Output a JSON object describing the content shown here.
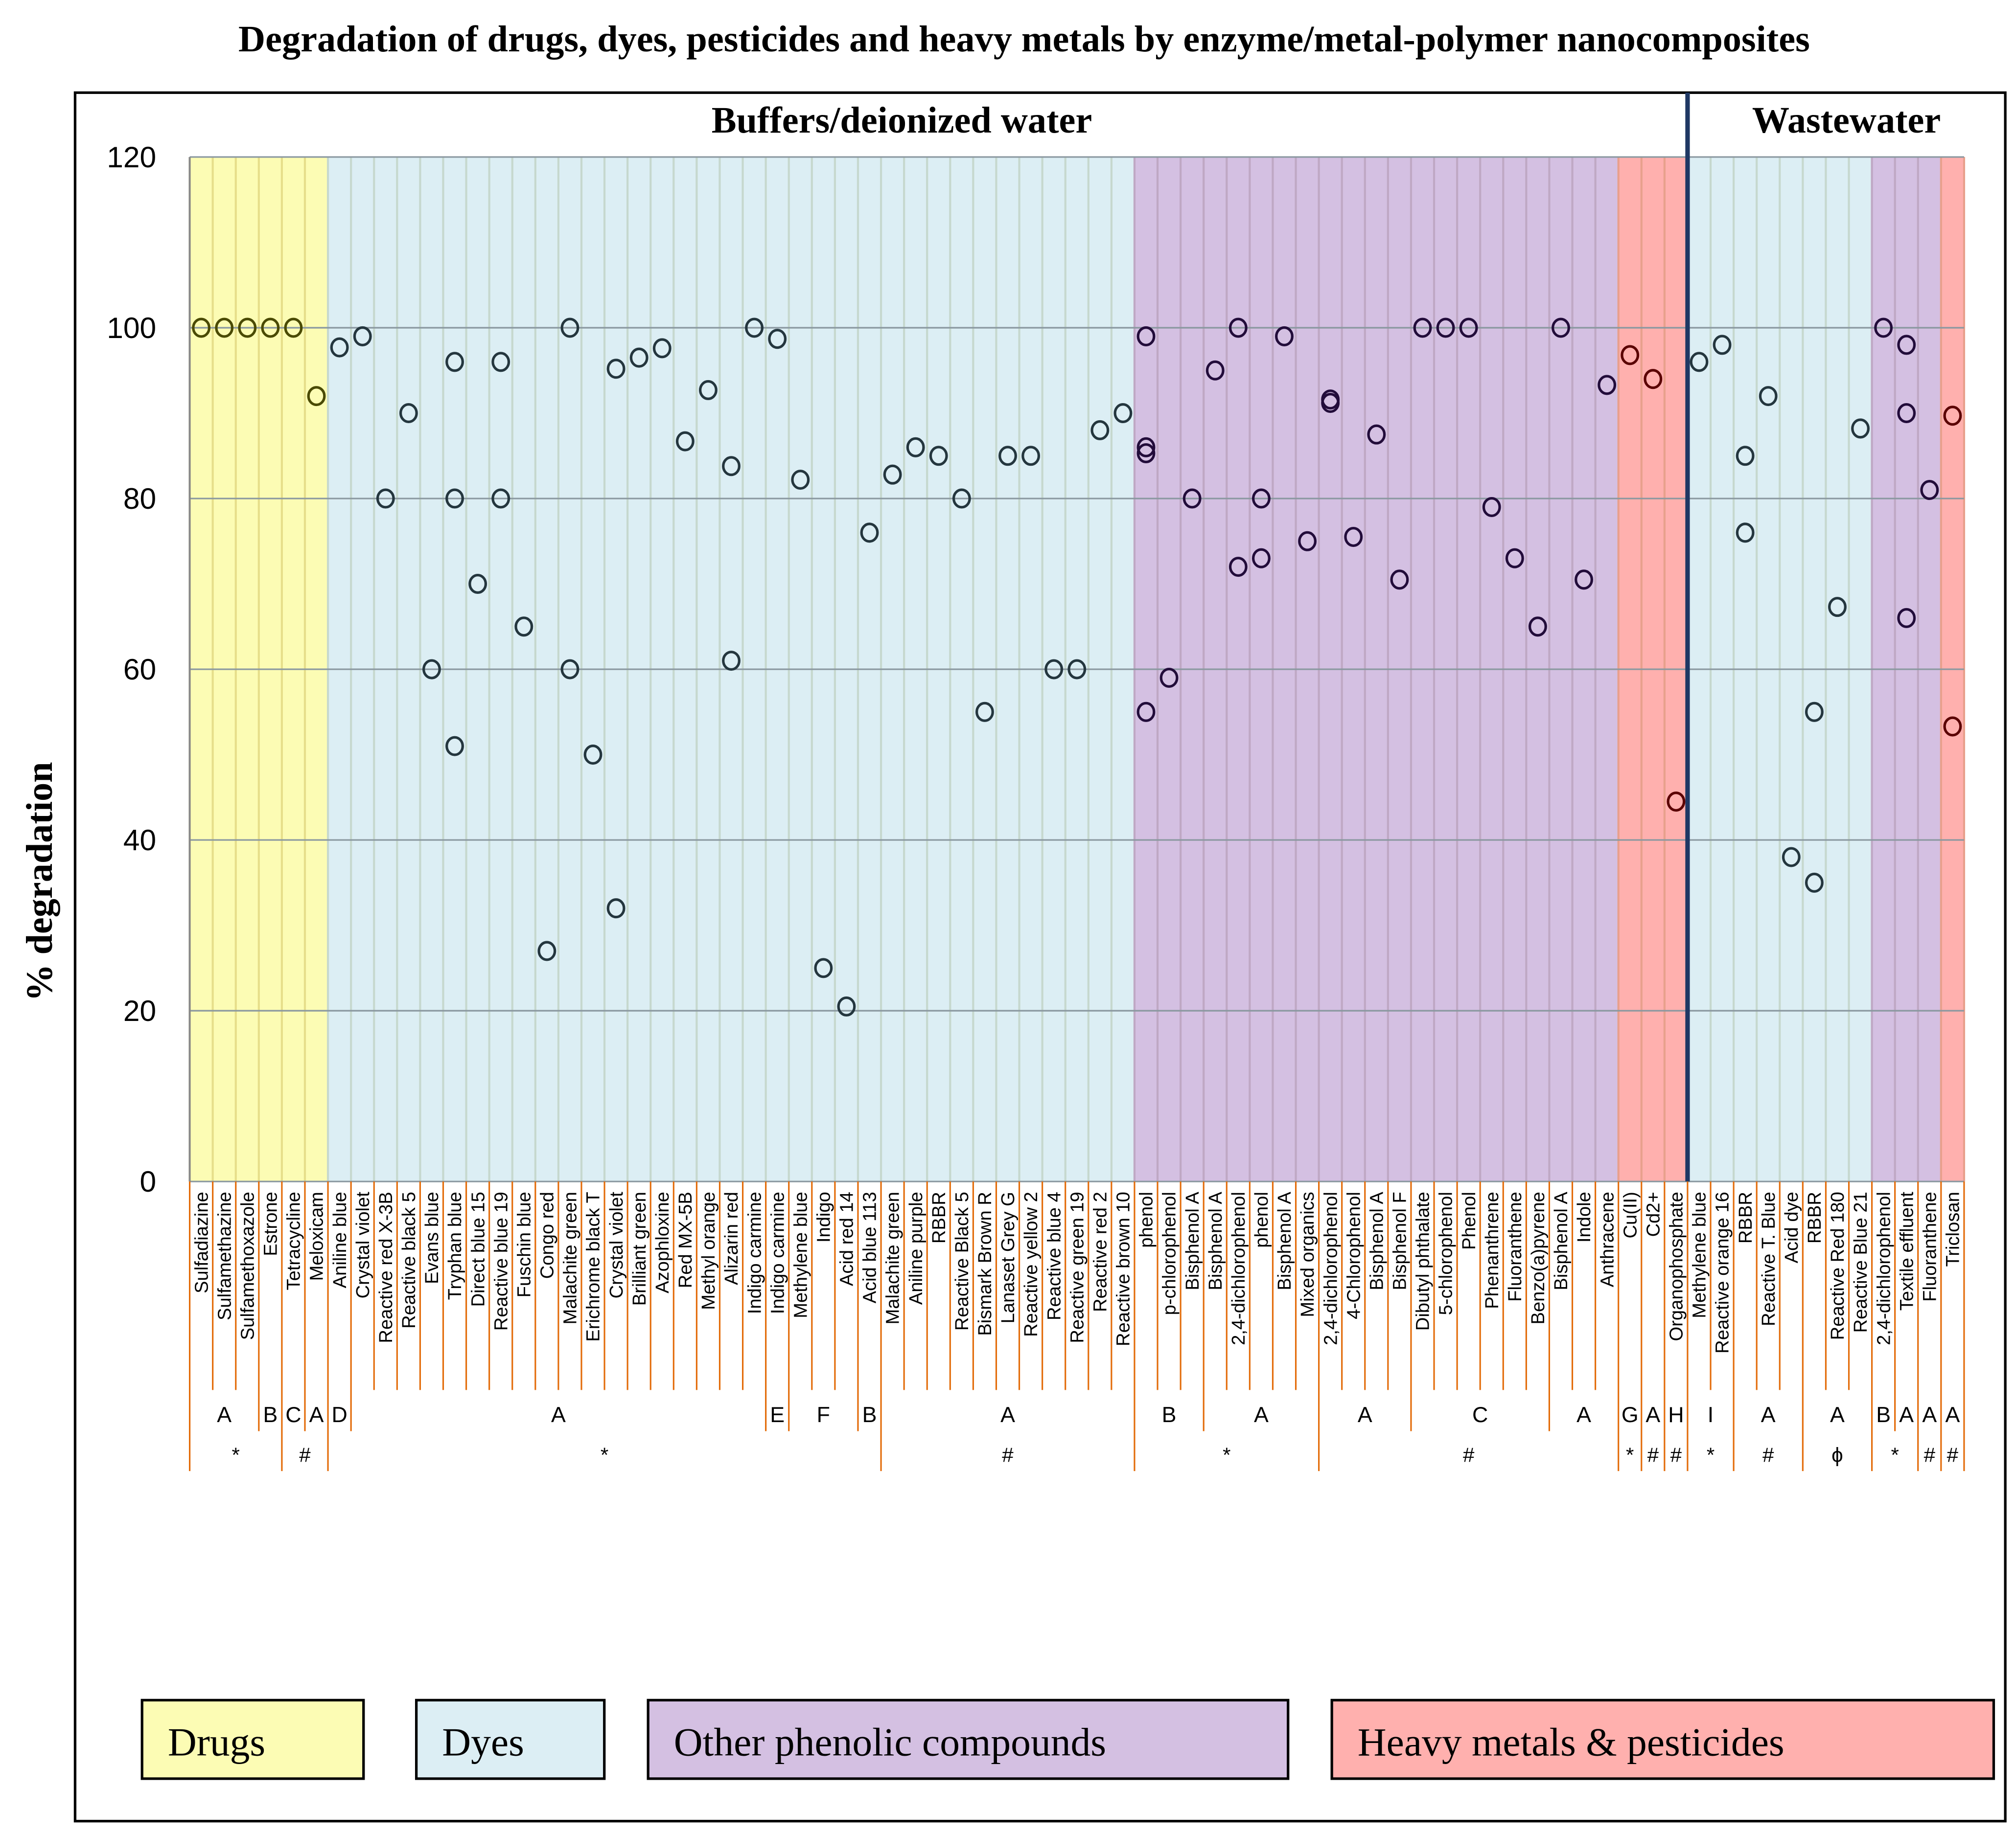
{
  "chart_data": {
    "type": "scatter",
    "title": "Degradation of drugs, dyes, pesticides and heavy metals by enzyme/metal-polymer nanocomposites",
    "ylabel": "% degradation",
    "xlabel": "",
    "ylim": [
      0,
      120
    ],
    "yticks": [
      0,
      20,
      40,
      60,
      80,
      100,
      120
    ],
    "grid": true,
    "sections": [
      {
        "label": "Buffers/deionized water",
        "start": 0,
        "end": 64
      },
      {
        "label": "Wastewater",
        "start": 65,
        "end": 76
      }
    ],
    "groups": [
      {
        "name": "Drugs",
        "start": 0,
        "end": 5,
        "fill": "#FCFCB4",
        "grid": "#E6DE8A",
        "marker": "#4A4A00"
      },
      {
        "name": "Dyes",
        "start": 6,
        "end": 40,
        "fill": "#DCEEF4",
        "grid": "#C6D8CE",
        "marker": "#24363E"
      },
      {
        "name": "Other phenolic compounds",
        "start": 41,
        "end": 61,
        "fill": "#D4C0E2",
        "grid": "#BFA8C4",
        "marker": "#220C3A"
      },
      {
        "name": "Heavy metals & pesticides",
        "start": 62,
        "end": 64,
        "fill": "#FFB0AE",
        "grid": "#E8A08C",
        "marker": "#5A0000"
      },
      {
        "name": "Dyes",
        "start": 65,
        "end": 72,
        "fill": "#DCEEF4",
        "grid": "#C6D8CE",
        "marker": "#24363E"
      },
      {
        "name": "Other phenolic compounds",
        "start": 73,
        "end": 75,
        "fill": "#D4C0E2",
        "grid": "#BFA8C4",
        "marker": "#220C3A"
      },
      {
        "name": "Heavy metals & pesticides",
        "start": 76,
        "end": 76,
        "fill": "#FFB0AE",
        "grid": "#E8A08C",
        "marker": "#5A0000"
      }
    ],
    "categories": [
      {
        "label": "Sulfadiazine",
        "values": [
          100
        ]
      },
      {
        "label": "Sulfamethazine",
        "values": [
          100
        ]
      },
      {
        "label": "Sulfamethoxazole",
        "values": [
          100
        ]
      },
      {
        "label": "Estrone",
        "values": [
          100
        ]
      },
      {
        "label": "Tetracycline",
        "values": [
          100
        ]
      },
      {
        "label": "Meloxicam",
        "values": [
          92
        ]
      },
      {
        "label": "Aniline blue",
        "values": [
          97.7
        ]
      },
      {
        "label": "Crystal violet",
        "values": [
          99
        ]
      },
      {
        "label": "Reactive red X-3B",
        "values": [
          80
        ]
      },
      {
        "label": "Reactive black 5",
        "values": [
          90
        ]
      },
      {
        "label": "Evans blue",
        "values": [
          60
        ]
      },
      {
        "label": "Tryphan blue",
        "values": [
          96,
          80,
          51
        ]
      },
      {
        "label": "Direct blue 15",
        "values": [
          70
        ]
      },
      {
        "label": "Reactive blue 19",
        "values": [
          96,
          80
        ]
      },
      {
        "label": "Fuschin blue",
        "values": [
          65
        ]
      },
      {
        "label": "Congo red",
        "values": [
          27
        ]
      },
      {
        "label": "Malachite green",
        "values": [
          100,
          60
        ]
      },
      {
        "label": "Erichrome black T",
        "values": [
          50
        ]
      },
      {
        "label": "Crystal violet",
        "values": [
          95.2,
          32
        ]
      },
      {
        "label": "Brilliant green",
        "values": [
          96.5
        ]
      },
      {
        "label": "Azophloxine",
        "values": [
          97.6
        ]
      },
      {
        "label": "Red MX-5B",
        "values": [
          86.7
        ]
      },
      {
        "label": "Methyl orange",
        "values": [
          92.7
        ]
      },
      {
        "label": "Alizarin red",
        "values": [
          83.8,
          61
        ]
      },
      {
        "label": "Indigo carmine",
        "values": [
          100
        ]
      },
      {
        "label": "Indigo carmine",
        "values": [
          98.7
        ]
      },
      {
        "label": "Methylene blue",
        "values": [
          82.2
        ]
      },
      {
        "label": "Indigo",
        "values": [
          25
        ]
      },
      {
        "label": "Acid red 14",
        "values": [
          20.5
        ]
      },
      {
        "label": "Acid blue 113",
        "values": [
          76
        ]
      },
      {
        "label": "Malachite green",
        "values": [
          82.8
        ]
      },
      {
        "label": "Aniline purple",
        "values": [
          86
        ]
      },
      {
        "label": "RBBR",
        "values": [
          85
        ]
      },
      {
        "label": "Reactive Black 5",
        "values": [
          80
        ]
      },
      {
        "label": "Bismark Brown R",
        "values": [
          55
        ]
      },
      {
        "label": "Lanaset Grey G",
        "values": [
          85
        ]
      },
      {
        "label": "Reactive yellow 2",
        "values": [
          85
        ]
      },
      {
        "label": "Reactive blue 4",
        "values": [
          60
        ]
      },
      {
        "label": "Reactive green 19",
        "values": [
          60
        ]
      },
      {
        "label": "Reactive red 2",
        "values": [
          88
        ]
      },
      {
        "label": "Reactive brown 10",
        "values": [
          90
        ]
      },
      {
        "label": "phenol",
        "values": [
          99,
          86,
          85.3,
          55
        ]
      },
      {
        "label": "p-chlorophenol",
        "values": [
          59
        ]
      },
      {
        "label": "Bisphenol A",
        "values": [
          80
        ]
      },
      {
        "label": "Bisphenol A",
        "values": [
          95
        ]
      },
      {
        "label": "2,4-dichlorophenol",
        "values": [
          100,
          72
        ]
      },
      {
        "label": "phenol",
        "values": [
          80,
          73
        ]
      },
      {
        "label": "Bisphenol A",
        "values": [
          99
        ]
      },
      {
        "label": "Mixed organics",
        "values": [
          75
        ]
      },
      {
        "label": "2,4-dichlorophenol",
        "values": [
          91.6,
          91.2
        ]
      },
      {
        "label": "4-Chlorophenol",
        "values": [
          75.5
        ]
      },
      {
        "label": "Bisphenol A",
        "values": [
          87.5
        ]
      },
      {
        "label": "Bisphenol F",
        "values": [
          70.5
        ]
      },
      {
        "label": "Dibutyl phthalate",
        "values": [
          100
        ]
      },
      {
        "label": "5-chlorophenol",
        "values": [
          100
        ]
      },
      {
        "label": "Phenol",
        "values": [
          100
        ]
      },
      {
        "label": "Phenanthrene",
        "values": [
          79
        ]
      },
      {
        "label": "Fluoranthene",
        "values": [
          73
        ]
      },
      {
        "label": "Benzo(a)pyrene",
        "values": [
          65
        ]
      },
      {
        "label": "Bisphenol A",
        "values": [
          100
        ]
      },
      {
        "label": "Indole",
        "values": [
          70.5
        ]
      },
      {
        "label": "Anthracene",
        "values": [
          93.3
        ]
      },
      {
        "label": "Cu(II)",
        "values": [
          96.8
        ]
      },
      {
        "label": "Cd2+",
        "values": [
          94
        ]
      },
      {
        "label": "Organophosphate",
        "values": [
          44.5
        ]
      },
      {
        "label": "Methylene blue",
        "values": [
          96
        ]
      },
      {
        "label": "Reactive orange 16",
        "values": [
          98
        ]
      },
      {
        "label": "RBBR",
        "values": [
          85,
          76
        ]
      },
      {
        "label": "Reactive T. Blue",
        "values": [
          92
        ]
      },
      {
        "label": "Acid dye",
        "values": [
          38
        ]
      },
      {
        "label": "RBBR",
        "values": [
          55,
          35
        ]
      },
      {
        "label": "Reactive Red 180",
        "values": [
          67.3
        ]
      },
      {
        "label": "Reactive Blue 21",
        "values": [
          88.2
        ]
      },
      {
        "label": "2,4-dichlorophenol",
        "values": [
          100
        ]
      },
      {
        "label": "Textile effluent",
        "values": [
          98,
          90,
          66
        ]
      },
      {
        "label": "Fluoranthene",
        "values": [
          81
        ]
      },
      {
        "label": "Triclosan",
        "values": [
          89.7,
          53.3
        ]
      }
    ],
    "annotation_row1": [
      {
        "label": "A",
        "start": 0,
        "end": 2
      },
      {
        "label": "B",
        "start": 3,
        "end": 3
      },
      {
        "label": "C",
        "start": 4,
        "end": 4
      },
      {
        "label": "A",
        "start": 5,
        "end": 5
      },
      {
        "label": "D",
        "start": 6,
        "end": 6
      },
      {
        "label": "A",
        "start": 7,
        "end": 24
      },
      {
        "label": "E",
        "start": 25,
        "end": 25
      },
      {
        "label": "F",
        "start": 26,
        "end": 28
      },
      {
        "label": "B",
        "start": 29,
        "end": 29
      },
      {
        "label": "A",
        "start": 30,
        "end": 40
      },
      {
        "label": "B",
        "start": 41,
        "end": 43
      },
      {
        "label": "A",
        "start": 44,
        "end": 48
      },
      {
        "label": "A",
        "start": 49,
        "end": 52
      },
      {
        "label": "C",
        "start": 53,
        "end": 58
      },
      {
        "label": "A",
        "start": 59,
        "end": 61
      },
      {
        "label": "G",
        "start": 62,
        "end": 62
      },
      {
        "label": "A",
        "start": 63,
        "end": 63
      },
      {
        "label": "H",
        "start": 64,
        "end": 64
      },
      {
        "label": "I",
        "start": 65,
        "end": 66
      },
      {
        "label": "A",
        "start": 67,
        "end": 69
      },
      {
        "label": "A",
        "start": 70,
        "end": 72
      },
      {
        "label": "B",
        "start": 73,
        "end": 73
      },
      {
        "label": "A",
        "start": 74,
        "end": 74
      },
      {
        "label": "A",
        "start": 75,
        "end": 75
      },
      {
        "label": "A",
        "start": 76,
        "end": 76
      }
    ],
    "annotation_row2": [
      {
        "label": "*",
        "start": 0,
        "end": 3
      },
      {
        "label": "#",
        "start": 4,
        "end": 5
      },
      {
        "label": "*",
        "start": 6,
        "end": 29
      },
      {
        "label": "#",
        "start": 30,
        "end": 40
      },
      {
        "label": "*",
        "start": 41,
        "end": 48
      },
      {
        "label": "#",
        "start": 49,
        "end": 61
      },
      {
        "label": "*",
        "start": 62,
        "end": 62
      },
      {
        "label": "#",
        "start": 63,
        "end": 63
      },
      {
        "label": "#",
        "start": 64,
        "end": 64
      },
      {
        "label": "*",
        "start": 65,
        "end": 66
      },
      {
        "label": "#",
        "start": 67,
        "end": 69
      },
      {
        "label": "ϕ",
        "start": 70,
        "end": 72
      },
      {
        "label": "*",
        "start": 73,
        "end": 74
      },
      {
        "label": "#",
        "start": 75,
        "end": 75
      },
      {
        "label": "#",
        "start": 76,
        "end": 76
      }
    ],
    "legend": [
      {
        "label": "Drugs",
        "fill": "#FCFCB4"
      },
      {
        "label": "Dyes",
        "fill": "#DCEEF4"
      },
      {
        "label": "Other phenolic compounds",
        "fill": "#D4C0E2"
      },
      {
        "label": "Heavy metals & pesticides",
        "fill": "#FFB0AE"
      }
    ],
    "legend_position": "bottom"
  }
}
